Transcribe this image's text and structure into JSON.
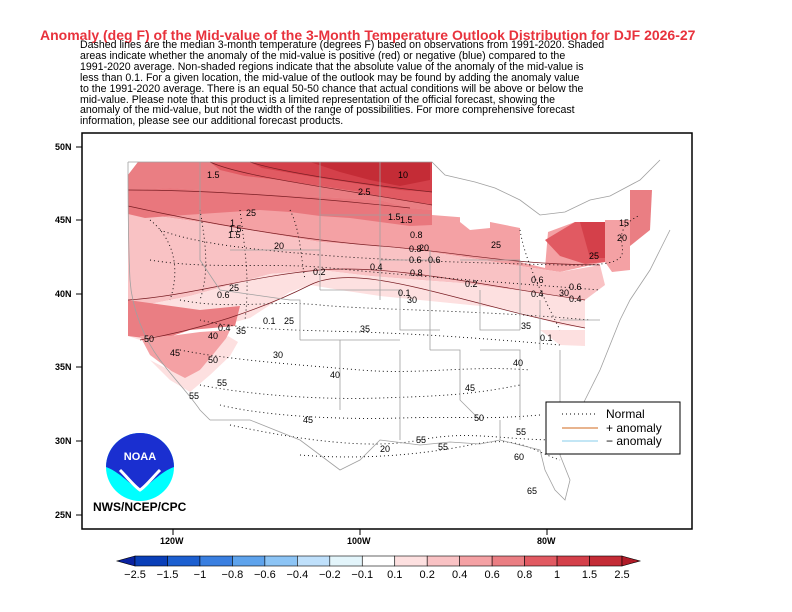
{
  "title": "Anomaly (deg F) of the Mid-value of the 3-Month Temperature Outlook Distribution for DJF 2026-27",
  "description_lines": [
    "Dashed lines are the median 3-month temperature (degrees F) based on observations from 1991-2020.  Shaded",
    "areas indicate whether the anomaly of the mid-value is positive (red) or negative (blue) compared to the",
    "1991-2020 average.    Non-shaded regions indicate that the absolute value of the anomaly of the mid-value is",
    "less than 0.1.    For a given location, the mid-value of the outlook may be found by adding the anomaly value",
    "to the 1991-2020 average. There is an equal 50-50 chance that actual conditions will be above or below the",
    "mid-value. Please note that this product is a limited representation of the official forecast, showing the",
    "anomaly of the mid-value, but not the width of the range of possibilities. For more comprehensive forecast",
    "information, please see our additional forecast products."
  ],
  "lat_ticks": [
    "50N",
    "45N",
    "40N",
    "35N",
    "30N",
    "25N"
  ],
  "lon_ticks": [
    "120W",
    "100W",
    "80W"
  ],
  "logo_text": "NOAA",
  "credit": "NWS/NCEP/CPC",
  "legend": {
    "normal": "Normal",
    "plus": "+ anomaly",
    "minus": "− anomaly",
    "plus_color": "#d2691e",
    "minus_color": "#87ceeb"
  },
  "colorbar": {
    "labels": [
      "−2.5",
      "−1.5",
      "−1",
      "−0.8",
      "−0.6",
      "−0.4",
      "−0.2",
      "−0.1",
      "0.1",
      "0.2",
      "0.4",
      "0.6",
      "0.8",
      "1",
      "1.5",
      "2.5"
    ],
    "colors": [
      "#0a3fb8",
      "#1c5fd0",
      "#3a7fe0",
      "#5ea3ec",
      "#8cc4f5",
      "#bfe0fb",
      "#e3f5fb",
      "#ffffff",
      "#fde0e0",
      "#f9c2c4",
      "#f4a1a4",
      "#ea7e83",
      "#e15a62",
      "#d4404a",
      "#c42c36"
    ],
    "end_low_color": "#0a22a0",
    "end_high_color": "#b01c28"
  },
  "contour_labels": [
    "10",
    "1.5",
    "2.5",
    "1.5",
    "1.5",
    "25",
    "0.8",
    "20",
    "20",
    "0.8",
    "1",
    "1.5",
    "1.5",
    "25",
    "20",
    "0.6",
    "0.6",
    "25",
    "0.4",
    "0.2",
    "0.4",
    "0.6",
    "25",
    "0.2",
    "0.6",
    "0.4",
    "30",
    "0.8",
    "0.1",
    "0.1",
    "30",
    "25",
    "0.6",
    "35",
    "35",
    "0.1",
    "40",
    "0.4",
    "50",
    "35",
    "45",
    "50",
    "30",
    "55",
    "40",
    "40",
    "45",
    "55",
    "45",
    "50",
    "55",
    "55",
    "55",
    "60",
    "65",
    "15",
    "20"
  ]
}
